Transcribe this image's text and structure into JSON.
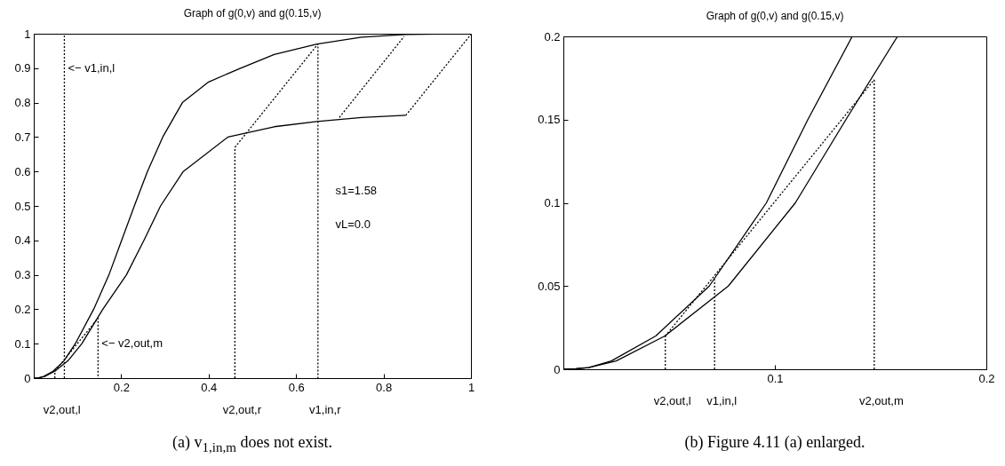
{
  "chart_data": [
    {
      "type": "line",
      "title": "Graph of g(0,v) and g(0.15,v)",
      "xlabel": "(a) v$_{1,in,m}$ does not exist.",
      "xlim": [
        0,
        1
      ],
      "ylim": [
        0,
        1
      ],
      "xticks": [
        0.2,
        0.4,
        0.6,
        0.8,
        1
      ],
      "yticks": [
        0,
        0.1,
        0.2,
        0.3,
        0.4,
        0.5,
        0.6,
        0.7,
        0.8,
        0.9,
        1
      ],
      "grid": false,
      "marker": "none",
      "series": [
        {
          "color": "#000000",
          "line_style": "solid",
          "x": [
            0,
            0.012,
            0.0227,
            0.044,
            0.069,
            0.095,
            0.137,
            0.172,
            0.201,
            0.23,
            0.26,
            0.295,
            0.34,
            0.4,
            0.473,
            0.55,
            0.648,
            0.75,
            0.85,
            1
          ],
          "values": [
            0,
            0.001,
            0.005,
            0.02,
            0.05,
            0.1,
            0.2,
            0.3,
            0.4,
            0.5,
            0.6,
            0.7,
            0.8,
            0.86,
            0.9,
            0.94,
            0.97,
            0.99,
            0.998,
            1
          ]
        },
        {
          "color": "#000000",
          "line_style": "solid",
          "x": [
            0,
            0.012,
            0.025,
            0.048,
            0.078,
            0.11,
            0.158,
            0.212,
            0.252,
            0.29,
            0.342,
            0.444,
            0.55,
            0.648,
            0.75,
            0.851
          ],
          "values": [
            0,
            0.001,
            0.005,
            0.02,
            0.05,
            0.1,
            0.2,
            0.3,
            0.4,
            0.5,
            0.6,
            0.7,
            0.73,
            0.745,
            0.757,
            0.763
          ]
        },
        {
          "color": "#000000",
          "line_style": "dotted",
          "x": [
            0.07,
            0.07
          ],
          "values": [
            0,
            1
          ]
        },
        {
          "color": "#000000",
          "line_style": "dotted",
          "x": [
            0.0482,
            0.0482,
            0.147,
            0.147
          ],
          "values": [
            0,
            0.02,
            0.174,
            0
          ]
        },
        {
          "color": "#000000",
          "line_style": "dotted",
          "x": [
            0.46,
            0.46,
            0.65,
            0.65
          ],
          "values": [
            0,
            0.67,
            0.97,
            0
          ]
        },
        {
          "color": "#000000",
          "line_style": "dotted",
          "x": [
            0.699,
            0.847
          ],
          "values": [
            0.757,
            0.992
          ]
        },
        {
          "color": "#000000",
          "line_style": "dotted",
          "x": [
            0.851,
            1
          ],
          "values": [
            0.763,
            0.998
          ]
        }
      ],
      "annotations": [
        {
          "text": "<− v1,in,l",
          "x": 0.07,
          "y": 0.9
        },
        {
          "text": "<− v2,out,m",
          "x": 0.147,
          "y": 0.1
        },
        {
          "text": "v2,out,l",
          "x": 0.0482,
          "y": 0
        },
        {
          "text": "v2,out,r",
          "x": 0.46,
          "y": 0
        },
        {
          "text": "v1,in,r",
          "x": 0.65,
          "y": 0
        },
        "s1=1.58",
        "vL=0.0"
      ]
    },
    {
      "type": "line",
      "title": "Graph of g(0,v) and g(0.15,v)",
      "xlabel": "(b) Figure 4.11 (a) enlarged.",
      "xlim": [
        0,
        0.2
      ],
      "ylim": [
        0,
        0.2
      ],
      "xticks": [
        0.1,
        0.2
      ],
      "yticks": [
        0,
        0.05,
        0.1,
        0.15,
        0.2
      ],
      "grid": false,
      "marker": "none",
      "series": [
        {
          "color": "#000000",
          "line_style": "solid",
          "x": [
            0,
            0.006,
            0.012,
            0.0227,
            0.0437,
            0.069,
            0.096,
            0.1156,
            0.1366
          ],
          "values": [
            0,
            0.0003,
            0.001,
            0.005,
            0.02,
            0.05,
            0.1,
            0.15,
            0.2
          ]
        },
        {
          "color": "#000000",
          "line_style": "solid",
          "x": [
            0,
            0.006,
            0.012,
            0.025,
            0.048,
            0.078,
            0.1097,
            0.1336,
            0.158
          ],
          "values": [
            0,
            0.0003,
            0.001,
            0.005,
            0.02,
            0.05,
            0.1,
            0.15,
            0.2
          ]
        },
        {
          "color": "#000000",
          "line_style": "dotted",
          "x": [
            0.0482,
            0.0482
          ],
          "values": [
            0,
            0.02
          ]
        },
        {
          "color": "#000000",
          "line_style": "dotted",
          "x": [
            0.0715,
            0.0715
          ],
          "values": [
            0,
            0.054
          ]
        },
        {
          "color": "#000000",
          "line_style": "dotted",
          "x": [
            0.147,
            0.147
          ],
          "values": [
            0,
            0.174
          ]
        },
        {
          "color": "#000000",
          "line_style": "dotted",
          "x": [
            0.0482,
            0.147
          ],
          "values": [
            0.02,
            0.174
          ]
        }
      ],
      "annotations": [
        {
          "text": "v2,out,l",
          "x": 0.0482,
          "y": 0
        },
        {
          "text": "v1,in,l",
          "x": 0.0715,
          "y": 0
        },
        {
          "text": "v2,out,m",
          "x": 0.147,
          "y": 0
        }
      ]
    }
  ]
}
